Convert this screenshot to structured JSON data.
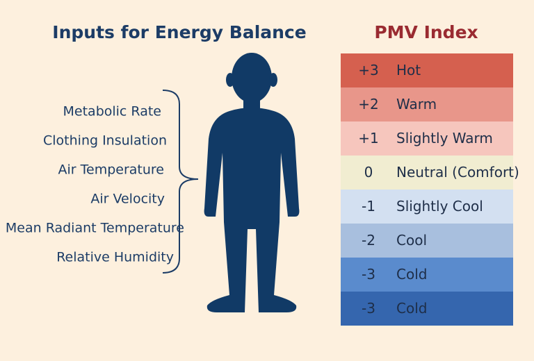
{
  "inputs": {
    "title": "Inputs for Energy Balance",
    "items": [
      "Metabolic Rate",
      "Clothing Insulation",
      "Air Temperature",
      "Air Velocity",
      "Mean Radiant Temperature",
      "Relative Humidity"
    ]
  },
  "pmv": {
    "title": "PMV Index",
    "rows": [
      {
        "value": "+3",
        "label": "Hot",
        "color": "#d5604f"
      },
      {
        "value": "+2",
        "label": "Warm",
        "color": "#e8968a"
      },
      {
        "value": "+1",
        "label": "Slightly Warm",
        "color": "#f6c6bd"
      },
      {
        "value": "0",
        "label": "Neutral (Comfort)",
        "color": "#f1edd1"
      },
      {
        "value": "-1",
        "label": "Slightly Cool",
        "color": "#d3e0f1"
      },
      {
        "value": "-2",
        "label": "Cool",
        "color": "#a8bfde"
      },
      {
        "value": "-3",
        "label": "Cold",
        "color": "#5a8bcd"
      },
      {
        "value": "-3",
        "label": "Cold",
        "color": "#3566ae"
      }
    ]
  }
}
